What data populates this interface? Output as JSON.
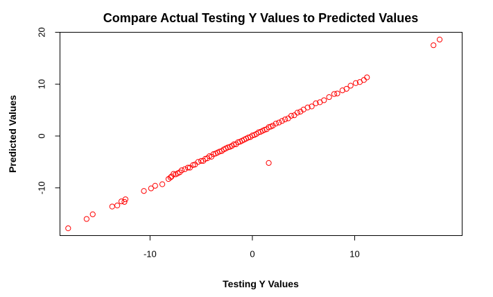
{
  "chart_data": {
    "type": "scatter",
    "title": "Compare Actual Testing Y Values to Predicted Values",
    "xlabel": "Testing Y Values",
    "ylabel": "Predicted Values",
    "xlim": [
      -18.8,
      20.5
    ],
    "ylim": [
      -19.2,
      20.0
    ],
    "xticks": [
      -10,
      0,
      10
    ],
    "xtick_labels": [
      "-10",
      "0",
      "10"
    ],
    "yticks": [
      -10,
      0,
      10,
      20
    ],
    "ytick_labels": [
      "-10",
      "0",
      "10",
      "20"
    ],
    "grid": false,
    "legend": "none",
    "marker": "open-circle",
    "color": "#ff0000",
    "series": [
      {
        "x": [
          -18.0,
          -16.2,
          -15.6,
          -13.7,
          -13.2,
          -12.8,
          -12.5,
          -12.4,
          -10.6,
          -9.9,
          -9.5,
          -8.8,
          -8.2,
          -8.0,
          -7.9,
          -7.7,
          -7.5,
          -7.3,
          -7.1,
          -6.9,
          -6.6,
          -6.3,
          -6.1,
          -5.8,
          -5.6,
          -5.3,
          -5.0,
          -4.8,
          -4.6,
          -4.4,
          -4.2,
          -4.0,
          -3.8,
          -3.6,
          -3.4,
          -3.2,
          -3.0,
          -2.8,
          -2.6,
          -2.4,
          -2.2,
          -2.0,
          -1.8,
          -1.6,
          -1.4,
          -1.2,
          -1.0,
          -0.8,
          -0.6,
          -0.4,
          -0.2,
          0.0,
          0.2,
          0.4,
          0.6,
          0.8,
          1.0,
          1.2,
          1.4,
          1.6,
          1.8,
          2.0,
          2.3,
          2.6,
          2.9,
          3.2,
          3.5,
          3.8,
          4.1,
          4.4,
          4.7,
          5.0,
          5.4,
          5.8,
          6.2,
          6.6,
          7.0,
          7.5,
          8.0,
          8.3,
          8.8,
          9.2,
          9.6,
          10.1,
          10.5,
          10.9,
          11.2,
          1.6,
          17.7,
          18.3
        ],
        "y": [
          -17.8,
          -16.0,
          -15.1,
          -13.6,
          -13.4,
          -12.6,
          -12.7,
          -12.2,
          -10.6,
          -10.1,
          -9.6,
          -9.3,
          -8.3,
          -8.0,
          -7.8,
          -7.3,
          -7.4,
          -7.2,
          -7.0,
          -6.6,
          -6.4,
          -6.1,
          -6.1,
          -5.6,
          -5.5,
          -5.0,
          -4.8,
          -4.8,
          -4.4,
          -4.3,
          -3.9,
          -4.0,
          -3.5,
          -3.4,
          -3.2,
          -3.0,
          -2.9,
          -2.6,
          -2.4,
          -2.2,
          -2.1,
          -1.9,
          -1.6,
          -1.6,
          -1.2,
          -1.1,
          -0.9,
          -0.7,
          -0.5,
          -0.3,
          -0.2,
          0.1,
          0.2,
          0.4,
          0.7,
          0.8,
          1.0,
          1.2,
          1.3,
          1.7,
          1.8,
          2.0,
          2.4,
          2.6,
          2.9,
          3.2,
          3.4,
          3.9,
          4.0,
          4.5,
          4.7,
          5.1,
          5.5,
          5.7,
          6.3,
          6.5,
          6.9,
          7.5,
          8.1,
          8.2,
          8.8,
          9.1,
          9.7,
          10.2,
          10.4,
          10.8,
          11.3,
          -5.2,
          17.5,
          18.6
        ]
      }
    ]
  }
}
